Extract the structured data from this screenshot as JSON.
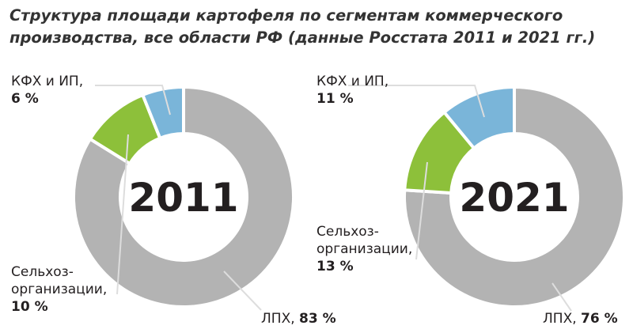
{
  "title": {
    "line1": "Структура площади картофеля по сегментам коммерческого",
    "line2": "производства, все области РФ (данные Росстата 2011 и 2021 гг.)"
  },
  "colors": {
    "lph": "#b3b3b3",
    "selhoz": "#8dc03a",
    "kfh": "#7ab5d9"
  },
  "chart_data": [
    {
      "type": "pie",
      "donut": true,
      "center_label": "2011",
      "categories": [
        "ЛПХ",
        "Сельхоз-организации",
        "КФХ и ИП"
      ],
      "values": [
        83,
        10,
        6
      ],
      "labels": [
        {
          "name": "ЛПХ,",
          "value": "83 %"
        },
        {
          "name1": "Сельхоз-",
          "name2": "организации,",
          "value": "10 %"
        },
        {
          "name": "КФХ и ИП,",
          "value": "6 %"
        }
      ]
    },
    {
      "type": "pie",
      "donut": true,
      "center_label": "2021",
      "categories": [
        "ЛПХ",
        "Сельхоз-организации",
        "КФХ и ИП"
      ],
      "values": [
        76,
        13,
        11
      ],
      "labels": [
        {
          "name": "ЛПХ,",
          "value": "76 %"
        },
        {
          "name1": "Сельхоз-",
          "name2": "организации,",
          "value": "13 %"
        },
        {
          "name": "КФХ и ИП,",
          "value": "11 %"
        }
      ]
    }
  ]
}
